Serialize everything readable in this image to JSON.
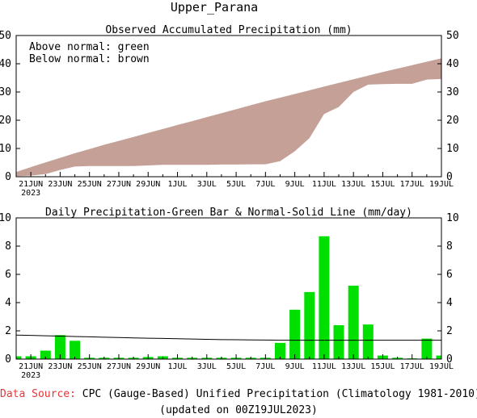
{
  "title": "Upper_Parana",
  "source_label": "Data Source:",
  "source_text": "CPC (Gauge-Based) Unified Precipitation (Climatology 1981-2010)",
  "updated_text": "(updated on 00Z19JUL2023)",
  "colors": {
    "observed_fill": "#c4a097",
    "daily_bar": "#00e000",
    "source_label": "#e8353a",
    "normal_line": "#000000"
  },
  "x_tick_labels": [
    "21JUN",
    "23JUN",
    "25JUN",
    "27JUN",
    "29JUN",
    "1JUL",
    "3JUL",
    "5JUL",
    "7JUL",
    "9JUL",
    "11JUL",
    "13JUL",
    "15JUL",
    "17JUL",
    "19JUL"
  ],
  "x_year_label": "2023",
  "chart_data": [
    {
      "type": "area",
      "title": "Observed Accumulated Precipitation (mm)",
      "annotations": [
        "Above normal: green",
        "Below normal: brown"
      ],
      "x": [
        "20JUN",
        "21JUN",
        "22JUN",
        "23JUN",
        "24JUN",
        "25JUN",
        "26JUN",
        "27JUN",
        "28JUN",
        "29JUN",
        "30JUN",
        "1JUL",
        "2JUL",
        "3JUL",
        "4JUL",
        "5JUL",
        "6JUL",
        "7JUL",
        "8JUL",
        "9JUL",
        "10JUL",
        "11JUL",
        "12JUL",
        "13JUL",
        "14JUL",
        "15JUL",
        "16JUL",
        "17JUL",
        "18JUL",
        "19JUL"
      ],
      "series": [
        {
          "name": "Observed",
          "values": [
            0.2,
            0.4,
            0.9,
            2.4,
            3.6,
            3.8,
            3.8,
            3.8,
            3.8,
            4.0,
            4.2,
            4.2,
            4.2,
            4.2,
            4.3,
            4.3,
            4.4,
            4.4,
            5.5,
            9.0,
            13.7,
            22.2,
            24.7,
            30.0,
            32.6,
            32.8,
            32.9,
            32.9,
            34.4,
            34.6
          ]
        },
        {
          "name": "Normal",
          "values": [
            1.7,
            3.4,
            5.1,
            6.7,
            8.3,
            9.8,
            11.3,
            12.7,
            14.1,
            15.5,
            16.9,
            18.3,
            19.7,
            21.1,
            22.5,
            23.9,
            25.3,
            26.7,
            28.0,
            29.3,
            30.6,
            31.9,
            33.2,
            34.5,
            35.8,
            37.1,
            38.3,
            39.5,
            40.7,
            41.9
          ]
        }
      ],
      "ylim": [
        0,
        50
      ],
      "yticks": [
        0,
        10,
        20,
        30,
        40,
        50
      ],
      "fill_between": "below normal"
    },
    {
      "type": "bar",
      "title": "Daily Precipitation-Green Bar & Normal-Solid Line (mm/day)",
      "categories": [
        "20JUN",
        "21JUN",
        "22JUN",
        "23JUN",
        "24JUN",
        "25JUN",
        "26JUN",
        "27JUN",
        "28JUN",
        "29JUN",
        "30JUN",
        "1JUL",
        "2JUL",
        "3JUL",
        "4JUL",
        "5JUL",
        "6JUL",
        "7JUL",
        "8JUL",
        "9JUL",
        "10JUL",
        "11JUL",
        "12JUL",
        "13JUL",
        "14JUL",
        "15JUL",
        "16JUL",
        "17JUL",
        "18JUL",
        "19JUL"
      ],
      "series": [
        {
          "name": "Daily",
          "values": [
            0.2,
            0.2,
            0.6,
            1.7,
            1.3,
            0.1,
            0.1,
            0.1,
            0.1,
            0.15,
            0.2,
            0.1,
            0.1,
            0.1,
            0.1,
            0.1,
            0.1,
            0.1,
            1.15,
            3.5,
            4.75,
            8.7,
            2.4,
            5.2,
            2.45,
            0.25,
            0.1,
            0.05,
            1.45,
            0.25
          ]
        },
        {
          "name": "Normal",
          "line": true,
          "values": [
            1.7,
            1.68,
            1.65,
            1.63,
            1.6,
            1.58,
            1.55,
            1.53,
            1.5,
            1.48,
            1.46,
            1.44,
            1.42,
            1.4,
            1.38,
            1.37,
            1.36,
            1.35,
            1.34,
            1.34,
            1.34,
            1.34,
            1.34,
            1.34,
            1.34,
            1.34,
            1.34,
            1.34,
            1.34,
            1.34
          ]
        }
      ],
      "ylim": [
        0,
        10
      ],
      "yticks": [
        0,
        2,
        4,
        6,
        8,
        10
      ]
    }
  ]
}
